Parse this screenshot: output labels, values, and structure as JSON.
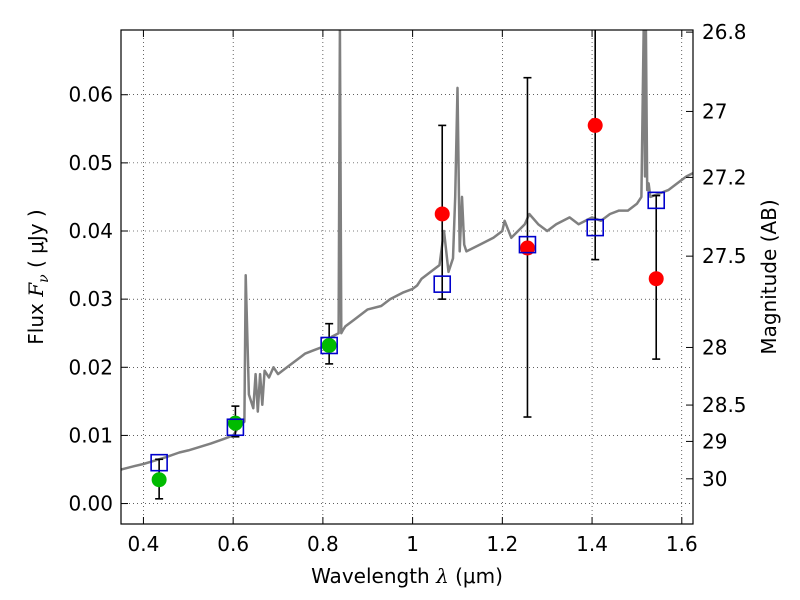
{
  "chart_data": {
    "type": "scatter",
    "xlabel": {
      "pre": "Wavelength  ",
      "sym": "λ",
      "unit": " (μm)"
    },
    "ylabel": {
      "pre": "Flux  ",
      "sym": "F",
      "sub": "ν",
      "unit": "  ( μJy )"
    },
    "ylabel_right": "Magnitude (AB)",
    "xlim": [
      0.35,
      1.625
    ],
    "ylim": [
      -0.003,
      0.0695
    ],
    "grid": true,
    "x_ticks": [
      0.4,
      0.6,
      0.8,
      1.0,
      1.2,
      1.4,
      1.6
    ],
    "x_tick_labels": [
      "0.4",
      "0.6",
      "0.8",
      "1",
      "1.2",
      "1.4",
      "1.6"
    ],
    "y_ticks": [
      0.0,
      0.01,
      0.02,
      0.03,
      0.04,
      0.05,
      0.06
    ],
    "y_tick_labels": [
      "0.00",
      "0.01",
      "0.02",
      "0.03",
      "0.04",
      "0.05",
      "0.06"
    ],
    "mag_ticks": [
      26.8,
      27.0,
      27.2,
      27.5,
      28.0,
      28.5,
      29.0,
      30.0
    ],
    "mag_tick_labels": [
      "26.8",
      "27",
      "27.2",
      "27.5",
      "28",
      "28.5",
      "29",
      "30"
    ],
    "colors": {
      "model": "#808080",
      "detections": "#00bb00",
      "nondetections": "#ff0000",
      "model_photometry": "#0000cc",
      "errorbar": "#000000"
    },
    "series": [
      {
        "kind": "model_spectrum",
        "x": [
          0.35,
          0.38,
          0.4,
          0.42,
          0.45,
          0.48,
          0.5,
          0.52,
          0.55,
          0.58,
          0.6,
          0.615,
          0.625,
          0.628,
          0.635,
          0.645,
          0.65,
          0.655,
          0.66,
          0.665,
          0.67,
          0.68,
          0.69,
          0.7,
          0.72,
          0.74,
          0.75,
          0.76,
          0.78,
          0.8,
          0.82,
          0.835,
          0.838,
          0.841,
          0.845,
          0.85,
          0.87,
          0.9,
          0.93,
          0.95,
          0.98,
          1.0,
          1.01,
          1.02,
          1.04,
          1.06,
          1.07,
          1.08,
          1.09,
          1.095,
          1.1,
          1.105,
          1.11,
          1.115,
          1.12,
          1.15,
          1.18,
          1.2,
          1.205,
          1.22,
          1.25,
          1.26,
          1.28,
          1.3,
          1.32,
          1.35,
          1.37,
          1.4,
          1.42,
          1.44,
          1.46,
          1.48,
          1.5,
          1.51,
          1.515,
          1.518,
          1.52,
          1.523,
          1.526,
          1.53,
          1.55,
          1.57,
          1.6,
          1.61,
          1.625
        ],
        "y": [
          0.005,
          0.0055,
          0.0058,
          0.0062,
          0.0068,
          0.0075,
          0.0078,
          0.0082,
          0.0088,
          0.0095,
          0.01,
          0.0115,
          0.012,
          0.0335,
          0.016,
          0.014,
          0.019,
          0.0135,
          0.019,
          0.0145,
          0.0195,
          0.0185,
          0.02,
          0.019,
          0.02,
          0.021,
          0.0215,
          0.022,
          0.0225,
          0.023,
          0.0245,
          0.025,
          0.07,
          0.025,
          0.0255,
          0.026,
          0.027,
          0.0285,
          0.029,
          0.03,
          0.031,
          0.0315,
          0.032,
          0.033,
          0.034,
          0.035,
          0.04,
          0.034,
          0.036,
          0.045,
          0.061,
          0.037,
          0.045,
          0.038,
          0.037,
          0.038,
          0.039,
          0.04,
          0.0415,
          0.039,
          0.041,
          0.0425,
          0.041,
          0.04,
          0.041,
          0.042,
          0.041,
          0.042,
          0.0415,
          0.0425,
          0.043,
          0.043,
          0.044,
          0.045,
          0.07,
          0.048,
          0.07,
          0.046,
          0.047,
          0.045,
          0.0455,
          0.046,
          0.0475,
          0.048,
          0.0485
        ]
      },
      {
        "kind": "detections",
        "points": [
          {
            "x": 0.435,
            "y": 0.0035,
            "yerr_low": 0.0028,
            "yerr_high": 0.003
          },
          {
            "x": 0.605,
            "y": 0.0118,
            "yerr_low": 0.002,
            "yerr_high": 0.0025
          },
          {
            "x": 0.814,
            "y": 0.0232,
            "yerr_low": 0.0027,
            "yerr_high": 0.0032
          }
        ]
      },
      {
        "kind": "nondetections",
        "points": [
          {
            "x": 1.066,
            "y": 0.0425,
            "yerr_low": 0.0125,
            "yerr_high": 0.013
          },
          {
            "x": 1.256,
            "y": 0.0375,
            "yerr_low": 0.0248,
            "yerr_high": 0.025
          },
          {
            "x": 1.407,
            "y": 0.0555,
            "yerr_low": 0.0197,
            "yerr_high": 0.0152
          },
          {
            "x": 1.543,
            "y": 0.033,
            "yerr_low": 0.0118,
            "yerr_high": 0.0122
          }
        ]
      },
      {
        "kind": "model_photometry",
        "points": [
          {
            "x": 0.435,
            "y": 0.006
          },
          {
            "x": 0.605,
            "y": 0.0112
          },
          {
            "x": 0.814,
            "y": 0.0232
          },
          {
            "x": 1.066,
            "y": 0.0322
          },
          {
            "x": 1.256,
            "y": 0.038
          },
          {
            "x": 1.407,
            "y": 0.0405
          },
          {
            "x": 1.543,
            "y": 0.0445
          }
        ]
      }
    ]
  }
}
